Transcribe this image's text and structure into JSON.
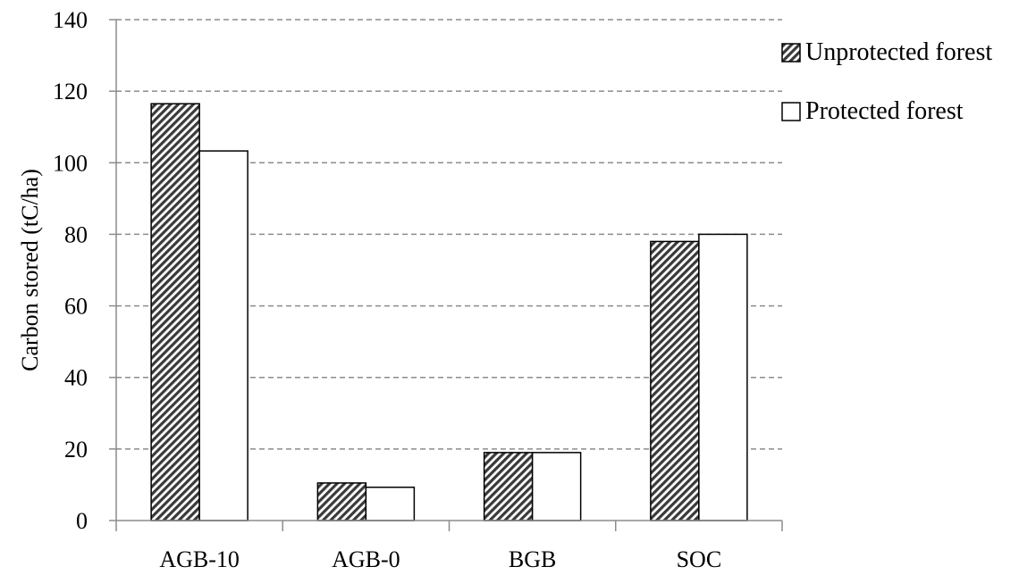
{
  "chart_data": {
    "type": "bar",
    "categories": [
      "AGB-10",
      "AGB-0",
      "BGB",
      "SOC"
    ],
    "series": [
      {
        "name": "Unprotected forest",
        "values": [
          116.5,
          10.5,
          19.0,
          78.0
        ]
      },
      {
        "name": "Protected forest",
        "values": [
          103.3,
          9.3,
          19.0,
          80.0
        ]
      }
    ],
    "ylabel": "Carbon stored (tC/ha)",
    "ylim": [
      0,
      140
    ],
    "yticks": [
      0,
      20,
      40,
      60,
      80,
      100,
      120,
      140
    ],
    "grid": "horizontal-dashed",
    "legend_position": "right",
    "colors": {
      "hatch": "#3a3a3a",
      "gridline": "#8c8c8c",
      "axis": "#8c8c8c"
    }
  }
}
